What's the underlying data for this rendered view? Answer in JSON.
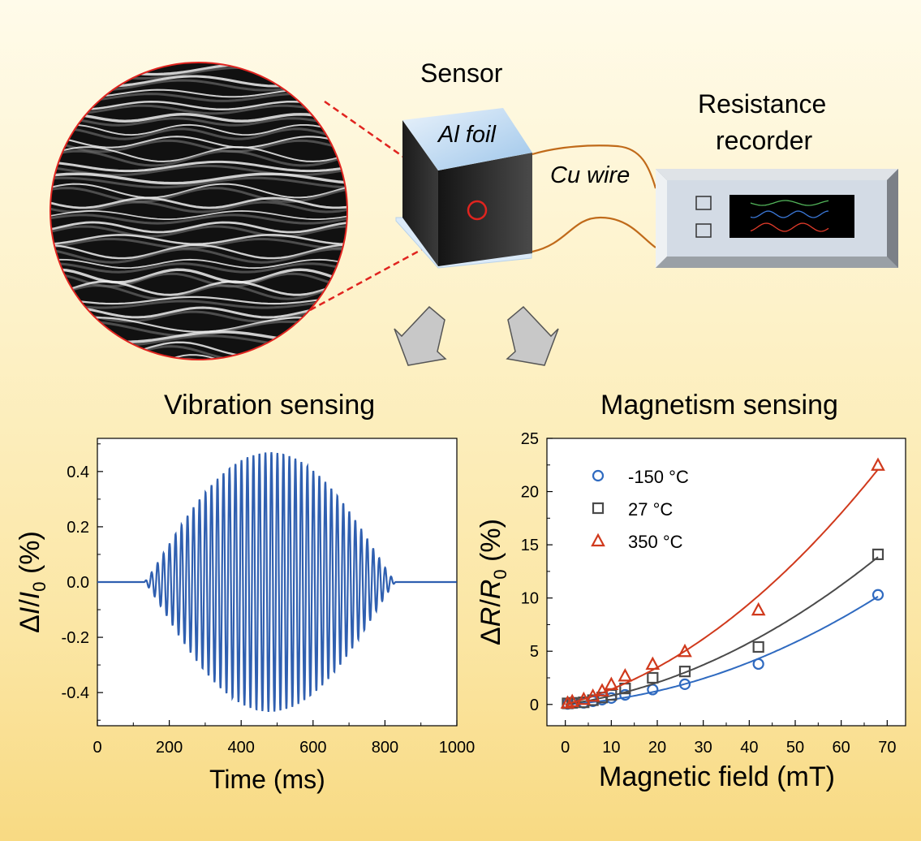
{
  "labels": {
    "sensor": "Sensor",
    "al_foil": "Al foil",
    "cu_wire": "Cu wire",
    "recorder_line1": "Resistance",
    "recorder_line2": "recorder",
    "vibration_title": "Vibration sensing",
    "magnetism_title": "Magnetism sensing"
  },
  "colors": {
    "red_dashed": "#e0241f",
    "wire": "#c06a1a",
    "vibration_line": "#2f5fb0",
    "series_blue": "#2f6ac0",
    "series_gray": "#4a4a4a",
    "series_red": "#d0391c"
  },
  "chart_data": [
    {
      "type": "line",
      "xlabel": "Time (ms)",
      "ylabel_parts": [
        "Δ",
        "I",
        "/",
        "I",
        "0",
        " (%)"
      ],
      "xlim": [
        0,
        1000
      ],
      "ylim": [
        -0.52,
        0.52
      ],
      "xticks": [
        0,
        200,
        400,
        600,
        800,
        1000
      ],
      "xtick_labels": [
        "0",
        "200",
        "400",
        "600",
        "800",
        "1000"
      ],
      "yticks": [
        0.4,
        0.2,
        0.0,
        -0.2,
        -0.4
      ],
      "ytick_labels": [
        "0.4",
        "0.2",
        "0.0",
        "-0.2",
        "-0.4"
      ],
      "signal": {
        "amplitude": 0.47,
        "center_ms": 480,
        "start_ms": 130,
        "end_ms": 830,
        "frequency_hz": 60
      }
    },
    {
      "type": "scatter",
      "xlabel": "Magnetic field (mT)",
      "ylabel_parts": [
        "Δ",
        "R",
        "/",
        "R",
        "0",
        " (%)"
      ],
      "xlim": [
        -4,
        74
      ],
      "ylim": [
        -2,
        25
      ],
      "xticks": [
        0,
        10,
        20,
        30,
        40,
        50,
        60,
        70
      ],
      "xtick_labels": [
        "0",
        "10",
        "20",
        "30",
        "40",
        "50",
        "60",
        "70"
      ],
      "yticks": [
        0,
        5,
        10,
        15,
        20,
        25
      ],
      "ytick_labels": [
        "0",
        "5",
        "10",
        "15",
        "20",
        "25"
      ],
      "legend_position": "top-left",
      "series": [
        {
          "name": "-150 °C",
          "marker": "circle",
          "x": [
            0.5,
            1.5,
            4,
            6,
            8,
            10,
            13,
            19,
            26,
            42,
            68
          ],
          "y": [
            0.05,
            0.1,
            0.15,
            0.3,
            0.45,
            0.6,
            0.9,
            1.4,
            1.9,
            3.8,
            10.3
          ]
        },
        {
          "name": "27 °C",
          "marker": "square",
          "x": [
            0.5,
            1.5,
            4,
            6,
            8,
            10,
            13,
            19,
            26,
            42,
            68
          ],
          "y": [
            0.1,
            0.15,
            0.2,
            0.4,
            0.65,
            0.9,
            1.5,
            2.5,
            3.1,
            5.4,
            14.1
          ]
        },
        {
          "name": "350 °C",
          "marker": "triangle",
          "x": [
            0.5,
            1.5,
            4,
            6,
            8,
            10,
            13,
            19,
            26,
            42,
            68
          ],
          "y": [
            0.15,
            0.3,
            0.5,
            0.8,
            1.3,
            1.9,
            2.7,
            3.8,
            5.0,
            8.9,
            22.5
          ]
        }
      ]
    }
  ]
}
